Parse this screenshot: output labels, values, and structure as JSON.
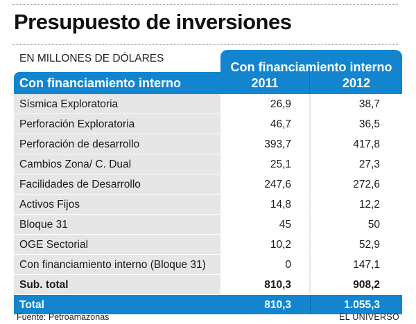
{
  "header": {
    "title": "Presupuesto de inversiones",
    "units": "EN MILLONES DE DÓLARES"
  },
  "chart_data": {
    "type": "table",
    "title": "Presupuesto de inversiones",
    "subtitle": "EN MILLONES DE DÓLARES",
    "group_header": "Con financiamiento interno",
    "first_column_header": "Con financiamiento interno",
    "columns": [
      "2011",
      "2012"
    ],
    "rows": [
      {
        "label": "Sísmica Exploratoria",
        "values": [
          "26,9",
          "38,7"
        ]
      },
      {
        "label": "Perforación Exploratoria",
        "values": [
          "46,7",
          "36,5"
        ]
      },
      {
        "label": "Perforación de desarrollo",
        "values": [
          "393,7",
          "417,8"
        ]
      },
      {
        "label": "Cambios Zona/ C. Dual",
        "values": [
          "25,1",
          "27,3"
        ]
      },
      {
        "label": "Facilidades de Desarrollo",
        "values": [
          "247,6",
          "272,6"
        ]
      },
      {
        "label": "Activos Fijos",
        "values": [
          "14,8",
          "12,2"
        ]
      },
      {
        "label": "Bloque 31",
        "values": [
          "45",
          "50"
        ]
      },
      {
        "label": "OGE Sectorial",
        "values": [
          "10,2",
          "52,9"
        ]
      },
      {
        "label": "Con financiamiento interno (Bloque 31)",
        "values": [
          "0",
          "147,1"
        ]
      },
      {
        "label": "Sub. total",
        "values": [
          "810,3",
          "908,2"
        ]
      },
      {
        "label": "Total",
        "values": [
          "810,3",
          "1.055,3"
        ]
      }
    ]
  },
  "footer": {
    "source": "Fuente: Petroamazonas",
    "brand": "EL UNIVERSO"
  },
  "colors": {
    "accent": "#1385cf",
    "row_bg": "#e6e6e6",
    "text": "#1a1a1a"
  }
}
